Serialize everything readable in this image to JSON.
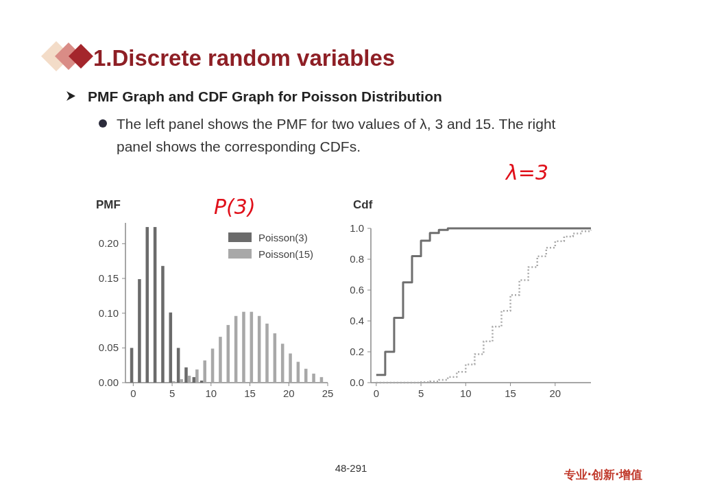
{
  "chart_data": [
    {
      "type": "other",
      "title": "1.Discrete random variables",
      "subtitle": "PMF Graph and CDF Graph for Poisson Distribution",
      "annotations": [
        "The left panel shows the PMF for two values of λ, 3 and 15. The right panel shows the corresponding CDFs.",
        "48-291",
        "专业·创新·增值",
        "P(3)",
        "λ=3"
      ]
    },
    {
      "type": "bar",
      "title": "PMF",
      "xlim": [
        -1,
        25
      ],
      "ylim": [
        0,
        0.23
      ],
      "xticks": [
        0,
        5,
        10,
        15,
        20,
        25
      ],
      "yticks": [
        {
          "value": 0,
          "label": "0.00"
        },
        {
          "value": 0.05,
          "label": "0.05"
        },
        {
          "value": 0.1,
          "label": "0.10"
        },
        {
          "value": 0.15,
          "label": "0.15"
        },
        {
          "value": 0.2,
          "label": "0.20"
        }
      ],
      "legend": "top right",
      "series": [
        {
          "name": "Poisson(3)",
          "color": "#6b6b6b",
          "x": [
            0,
            1,
            2,
            3,
            4,
            5,
            6,
            7,
            8,
            9
          ],
          "values": [
            0.05,
            0.149,
            0.224,
            0.224,
            0.168,
            0.101,
            0.05,
            0.022,
            0.008,
            0.003
          ]
        },
        {
          "name": "Poisson(15)",
          "color": "#a8a8a8",
          "x": [
            5,
            6,
            7,
            8,
            9,
            10,
            11,
            12,
            13,
            14,
            15,
            16,
            17,
            18,
            19,
            20,
            21,
            22,
            23,
            24
          ],
          "values": [
            0.002,
            0.005,
            0.01,
            0.019,
            0.032,
            0.049,
            0.066,
            0.083,
            0.096,
            0.102,
            0.102,
            0.096,
            0.085,
            0.071,
            0.056,
            0.042,
            0.03,
            0.02,
            0.013,
            0.008
          ]
        }
      ]
    },
    {
      "type": "step",
      "title": "Cdf",
      "xlim": [
        -0.6,
        24
      ],
      "ylim": [
        0,
        1
      ],
      "xticks": [
        0,
        5,
        10,
        15,
        20
      ],
      "yticks": [
        {
          "value": 0,
          "label": "0.0"
        },
        0.2,
        0.4,
        0.6,
        0.8,
        {
          "value": 1,
          "label": "1.0"
        }
      ],
      "series": [
        {
          "color": "#6e6e6e",
          "line_style": "solid",
          "x": [
            0,
            1,
            2,
            3,
            4,
            5,
            6,
            7,
            8,
            9,
            10,
            11,
            12,
            13,
            14,
            15,
            16,
            17,
            18,
            19,
            20,
            21,
            22,
            23,
            24
          ],
          "values": [
            0.05,
            0.2,
            0.42,
            0.65,
            0.82,
            0.92,
            0.97,
            0.99,
            1,
            1,
            1,
            1,
            1,
            1,
            1,
            1,
            1,
            1,
            1,
            1,
            1,
            1,
            1,
            1,
            1
          ]
        },
        {
          "color": "#a8a8a8",
          "line_style": "dotted",
          "x": [
            0,
            1,
            2,
            3,
            4,
            5,
            6,
            7,
            8,
            9,
            10,
            11,
            12,
            13,
            14,
            15,
            16,
            17,
            18,
            19,
            20,
            21,
            22,
            23,
            24
          ],
          "values": [
            0,
            0,
            0,
            0,
            0,
            0.003,
            0.008,
            0.018,
            0.037,
            0.07,
            0.118,
            0.185,
            0.268,
            0.363,
            0.466,
            0.568,
            0.664,
            0.749,
            0.819,
            0.875,
            0.917,
            0.947,
            0.967,
            0.981,
            0.989
          ]
        }
      ]
    }
  ]
}
